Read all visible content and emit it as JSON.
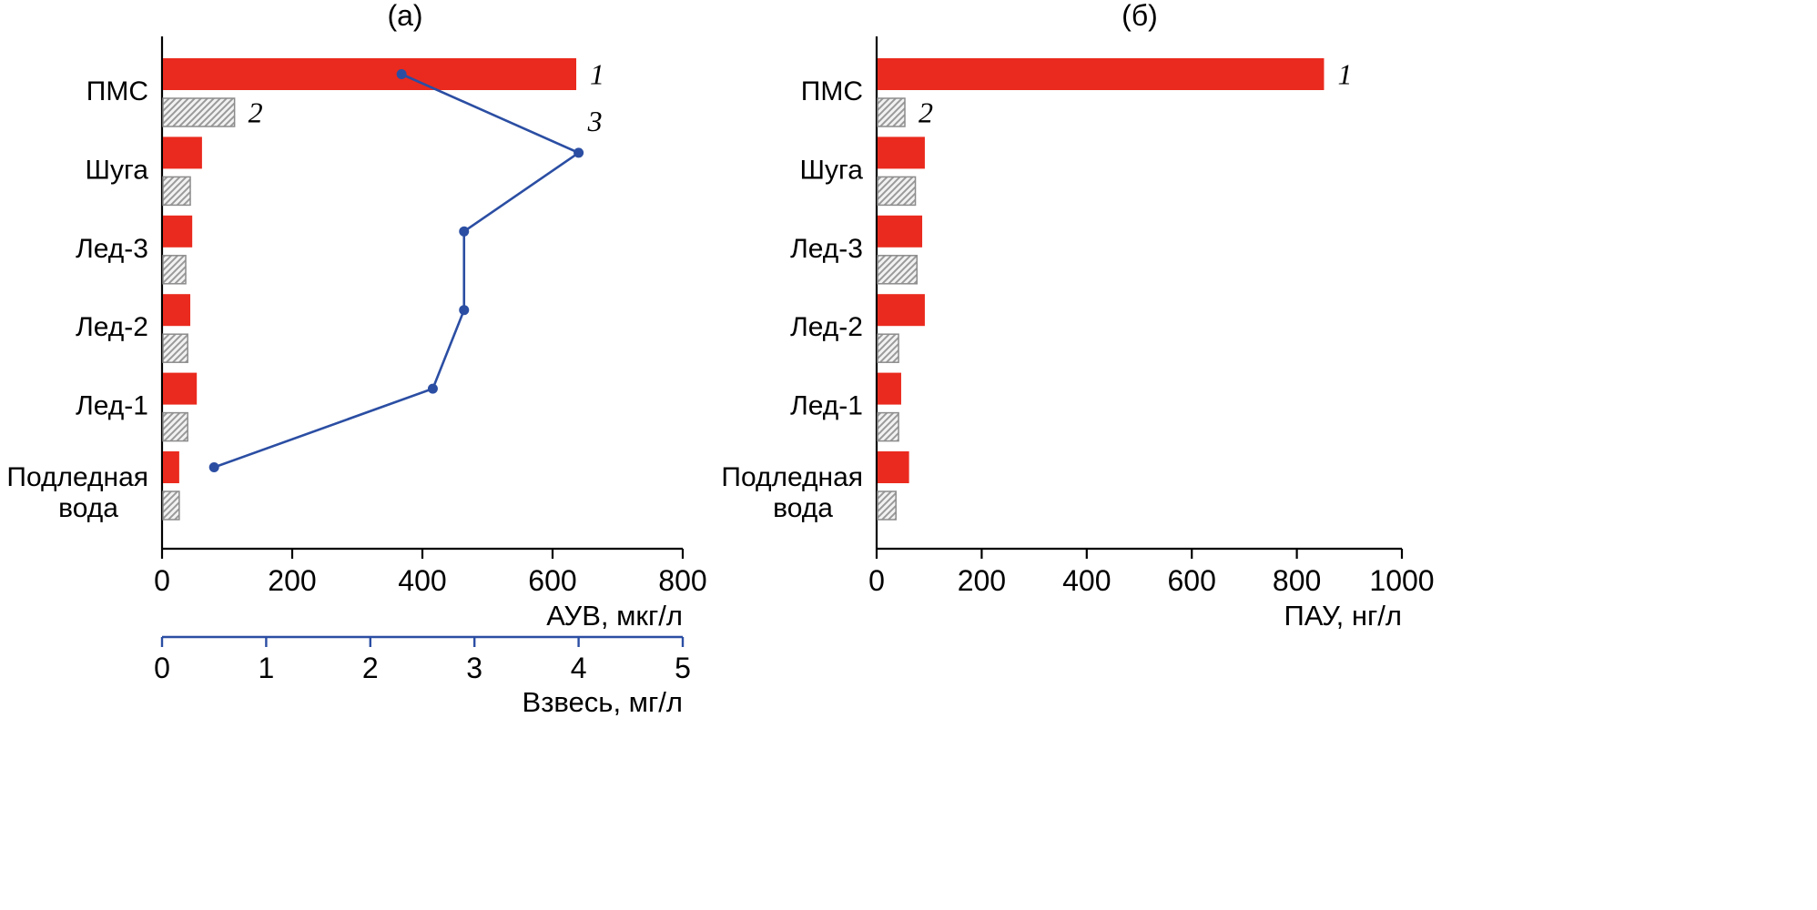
{
  "figure": {
    "background": "#ffffff",
    "description": "Two-panel horizontal bar chart figure"
  },
  "colors": {
    "red_bar": "#ea2a1e",
    "hatch_fill": "#f2f2f2",
    "hatch_stroke": "#9a9a9a",
    "hatch_border": "#8c8c8c",
    "blue_line": "#2b4ea3",
    "axis": "#000000",
    "text": "#000000"
  },
  "chart_data": [
    {
      "id": "panel-a",
      "type": "bar",
      "orientation": "horizontal",
      "title": "(а)",
      "categories": [
        "ПМС",
        "Шуга",
        "Лед-3",
        "Лед-2",
        "Лед-1",
        "Подледная вода"
      ],
      "series": [
        {
          "name": "1",
          "kind": "bar",
          "style": "solid-red",
          "axis": "primary",
          "values": [
            635,
            60,
            45,
            42,
            52,
            25
          ]
        },
        {
          "name": "2",
          "kind": "bar",
          "style": "hatched",
          "axis": "primary",
          "values": [
            110,
            42,
            35,
            38,
            38,
            25
          ]
        },
        {
          "name": "3",
          "kind": "line",
          "style": "blue-line-markers",
          "axis": "secondary",
          "values": [
            2.3,
            4.0,
            2.9,
            2.9,
            2.6,
            0.5
          ]
        }
      ],
      "primary_axis": {
        "label": "АУВ, мкг/л",
        "min": 0,
        "max": 800,
        "ticks": [
          0,
          200,
          400,
          600,
          800
        ]
      },
      "secondary_axis": {
        "label": "Взвесь, мг/л",
        "min": 0,
        "max": 5,
        "ticks": [
          0,
          1,
          2,
          3,
          4,
          5
        ]
      },
      "grid": false,
      "legend": "inline-numeric-labels"
    },
    {
      "id": "panel-b",
      "type": "bar",
      "orientation": "horizontal",
      "title": "(б)",
      "categories": [
        "ПМС",
        "Шуга",
        "Лед-3",
        "Лед-2",
        "Лед-1",
        "Подледная вода"
      ],
      "series": [
        {
          "name": "1",
          "kind": "bar",
          "style": "solid-red",
          "axis": "primary",
          "values": [
            850,
            90,
            85,
            90,
            45,
            60
          ]
        },
        {
          "name": "2",
          "kind": "bar",
          "style": "hatched",
          "axis": "primary",
          "values": [
            52,
            72,
            75,
            40,
            40,
            35
          ]
        }
      ],
      "primary_axis": {
        "label": "ПАУ, нг/л",
        "min": 0,
        "max": 1000,
        "ticks": [
          0,
          200,
          400,
          600,
          800,
          1000
        ]
      },
      "grid": false,
      "legend": "inline-numeric-labels"
    }
  ]
}
